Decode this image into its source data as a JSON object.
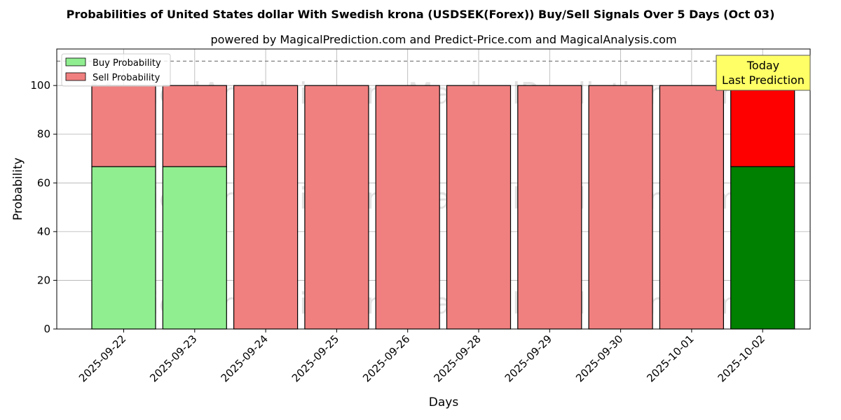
{
  "chart_data": {
    "type": "bar",
    "stacked": true,
    "title": "Probabilities of United States dollar With Swedish krona (USDSEK(Forex)) Buy/Sell Signals Over 5 Days (Oct 03)",
    "subtitle": "powered by MagicalPrediction.com and Predict-Price.com and MagicalAnalysis.com",
    "xlabel": "Days",
    "ylabel": "Probability",
    "ylim": [
      0,
      115
    ],
    "yticks": [
      0,
      20,
      40,
      60,
      80,
      100
    ],
    "categories": [
      "2025-09-22",
      "2025-09-23",
      "2025-09-24",
      "2025-09-25",
      "2025-09-26",
      "2025-09-28",
      "2025-09-29",
      "2025-09-30",
      "2025-10-01",
      "2025-10-02"
    ],
    "series": [
      {
        "name": "Buy Probability",
        "color": "#90ee90",
        "values": [
          66.7,
          66.7,
          0,
          0,
          0,
          0,
          0,
          0,
          0,
          66.7
        ]
      },
      {
        "name": "Sell Probability",
        "color": "#f08080",
        "values": [
          33.3,
          33.3,
          100,
          100,
          100,
          100,
          100,
          100,
          100,
          33.3
        ]
      }
    ],
    "highlight": {
      "index": 9,
      "buy_color": "#008000",
      "sell_color": "#ff0000"
    },
    "reference_line": 110,
    "annotation": {
      "lines": [
        "Today",
        "Last Prediction"
      ],
      "color": "#ffff66"
    },
    "watermarks": [
      "MagicalAnalysis.com",
      "MagicalPrediction.com"
    ],
    "grid": true,
    "legend_position": "top-left"
  }
}
